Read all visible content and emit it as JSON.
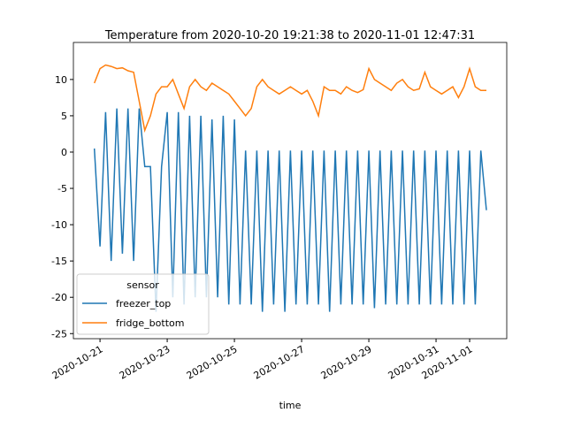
{
  "chart_data": {
    "type": "line",
    "title": "Temperature from 2020-10-20 19:21:38 to 2020-11-01 12:47:31",
    "x_label": "time",
    "legend_title": "sensor",
    "legend_position": "lower left",
    "x": [
      "2020-10-20 20:00",
      "2020-10-21 00:00",
      "2020-10-21 04:00",
      "2020-10-21 08:00",
      "2020-10-21 12:00",
      "2020-10-21 16:00",
      "2020-10-21 20:00",
      "2020-10-22 00:00",
      "2020-10-22 04:00",
      "2020-10-22 08:00",
      "2020-10-22 12:00",
      "2020-10-22 16:00",
      "2020-10-22 20:00",
      "2020-10-23 00:00",
      "2020-10-23 04:00",
      "2020-10-23 08:00",
      "2020-10-23 12:00",
      "2020-10-23 16:00",
      "2020-10-23 20:00",
      "2020-10-24 00:00",
      "2020-10-24 04:00",
      "2020-10-24 08:00",
      "2020-10-24 12:00",
      "2020-10-24 16:00",
      "2020-10-24 20:00",
      "2020-10-25 00:00",
      "2020-10-25 04:00",
      "2020-10-25 08:00",
      "2020-10-25 12:00",
      "2020-10-25 16:00",
      "2020-10-25 20:00",
      "2020-10-26 00:00",
      "2020-10-26 04:00",
      "2020-10-26 08:00",
      "2020-10-26 12:00",
      "2020-10-26 16:00",
      "2020-10-26 20:00",
      "2020-10-27 00:00",
      "2020-10-27 04:00",
      "2020-10-27 08:00",
      "2020-10-27 12:00",
      "2020-10-27 16:00",
      "2020-10-27 20:00",
      "2020-10-28 00:00",
      "2020-10-28 04:00",
      "2020-10-28 08:00",
      "2020-10-28 12:00",
      "2020-10-28 16:00",
      "2020-10-28 20:00",
      "2020-10-29 00:00",
      "2020-10-29 04:00",
      "2020-10-29 08:00",
      "2020-10-29 12:00",
      "2020-10-29 16:00",
      "2020-10-29 20:00",
      "2020-10-30 00:00",
      "2020-10-30 04:00",
      "2020-10-30 08:00",
      "2020-10-30 12:00",
      "2020-10-30 16:00",
      "2020-10-30 20:00",
      "2020-10-31 00:00",
      "2020-10-31 04:00",
      "2020-10-31 08:00",
      "2020-10-31 12:00",
      "2020-10-31 16:00",
      "2020-10-31 20:00",
      "2020-11-01 00:00",
      "2020-11-01 04:00",
      "2020-11-01 08:00",
      "2020-11-01 12:00"
    ],
    "series": [
      {
        "name": "freezer_top",
        "color": "#1f77b4",
        "values": [
          0.5,
          -13,
          5.5,
          -15,
          6,
          -14,
          6,
          -15,
          6,
          -2,
          -2,
          -22,
          -2,
          5.5,
          -20,
          5.5,
          -21,
          5,
          -20,
          5,
          -20,
          4.5,
          -20,
          5,
          -21,
          4.5,
          -21,
          0.2,
          -21,
          0.2,
          -22,
          0.2,
          -21,
          0.2,
          -22,
          0.2,
          -21,
          0.2,
          -21,
          0.2,
          -21,
          0.2,
          -22,
          0.2,
          -21,
          0.2,
          -21,
          0.2,
          -21,
          0.2,
          -21.5,
          0.2,
          -21,
          0.2,
          -21,
          0.2,
          -21,
          0.2,
          -21,
          0.2,
          -21,
          0.2,
          -21,
          0.2,
          -21,
          0.2,
          -21,
          0.2,
          -21,
          0.2,
          -8
        ]
      },
      {
        "name": "fridge_bottom",
        "color": "#ff7f0e",
        "values": [
          9.5,
          11.5,
          12,
          11.8,
          11.5,
          11.6,
          11.2,
          11,
          7,
          3,
          5,
          8,
          9,
          9,
          10,
          8,
          6,
          9,
          10,
          9,
          8.5,
          9.5,
          9,
          8.5,
          8,
          7,
          6,
          5,
          6,
          9,
          10,
          9,
          8.5,
          8,
          8.5,
          9,
          8.5,
          8,
          8.5,
          7,
          5,
          9,
          8.5,
          8.5,
          8,
          9,
          8.5,
          8.2,
          8.6,
          11.5,
          10,
          9.5,
          9,
          8.5,
          9.5,
          10,
          9,
          8.5,
          8.7,
          11,
          9,
          8.5,
          8,
          8.5,
          9,
          7.5,
          9,
          11.5,
          9,
          8.5,
          8.5
        ]
      }
    ],
    "xlim": [
      "2020-10-20 05:00",
      "2020-11-02 02:30"
    ],
    "xticks": [
      "2020-10-21",
      "2020-10-23",
      "2020-10-25",
      "2020-10-27",
      "2020-10-29",
      "2020-10-31",
      "2020-11-01"
    ],
    "ylim": [
      -25.7,
      15.1
    ],
    "yticks": [
      -25,
      -20,
      -15,
      -10,
      -5,
      0,
      5,
      10
    ]
  }
}
